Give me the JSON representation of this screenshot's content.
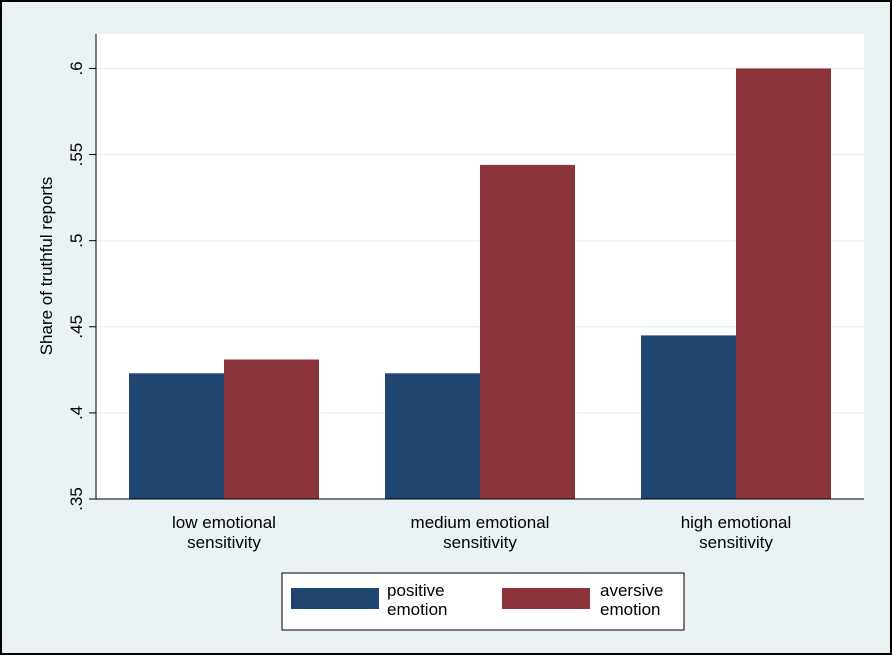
{
  "chart_data": {
    "type": "bar",
    "title": "",
    "xlabel": "",
    "ylabel": "Share of truthful reports",
    "categories": [
      [
        "low emotional",
        "sensitivity"
      ],
      [
        "medium emotional",
        "sensitivity"
      ],
      [
        "high emotional",
        "sensitivity"
      ]
    ],
    "series": [
      {
        "name": [
          "positive",
          "emotion"
        ],
        "color": "#1f4670",
        "values": [
          0.423,
          0.423,
          0.445
        ]
      },
      {
        "name": [
          "aversive",
          "emotion"
        ],
        "color": "#8c343c",
        "values": [
          0.431,
          0.544,
          0.6
        ]
      }
    ],
    "ylim": [
      0.35,
      0.62
    ],
    "yticks": [
      0.35,
      0.4,
      0.45,
      0.5,
      0.55,
      0.6
    ],
    "ytick_labels": [
      ".35",
      ".4",
      ".45",
      ".5",
      ".55",
      ".6"
    ],
    "grid": true,
    "legend_position": "bottom",
    "colors": {
      "outer_background": "#eaf2f3",
      "plot_background": "#ffffff",
      "grid": "#eaf2f3",
      "frame": "#000000"
    }
  }
}
